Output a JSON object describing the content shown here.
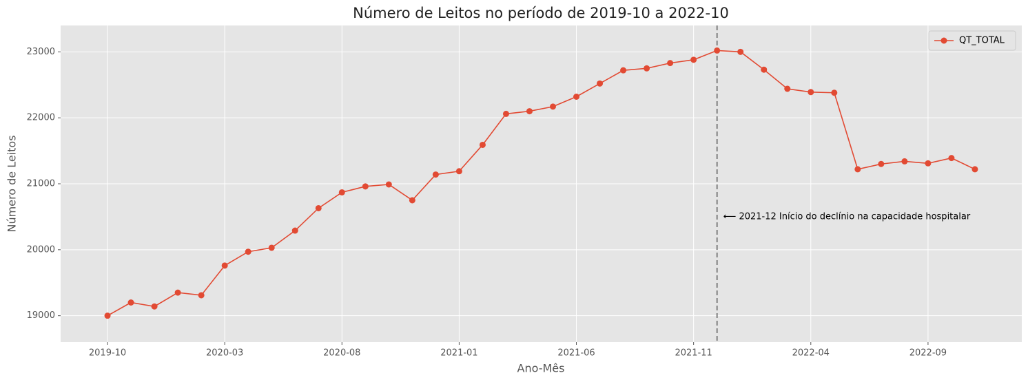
{
  "chart_data": {
    "type": "line",
    "title": "Número de Leitos no período de 2019-10 a 2022-10",
    "xlabel": "Ano-Mês",
    "ylabel": "Número de Leitos",
    "x": [
      "2019-10",
      "2019-11",
      "2019-12",
      "2020-01",
      "2020-02",
      "2020-03",
      "2020-04",
      "2020-05",
      "2020-06",
      "2020-07",
      "2020-08",
      "2020-09",
      "2020-10",
      "2020-11",
      "2020-12",
      "2021-01",
      "2021-02",
      "2021-03",
      "2021-04",
      "2021-05",
      "2021-06",
      "2021-07",
      "2021-08",
      "2021-09",
      "2021-10",
      "2021-11",
      "2021-12",
      "2022-01",
      "2022-02",
      "2022-03",
      "2022-04",
      "2022-05",
      "2022-06",
      "2022-07",
      "2022-08",
      "2022-09",
      "2022-10",
      "2022-11"
    ],
    "series": [
      {
        "name": "QT_TOTAL",
        "color": "#E24A33",
        "values": [
          19000,
          19200,
          19140,
          19350,
          19310,
          19760,
          19970,
          20030,
          20290,
          20630,
          20870,
          20960,
          20990,
          20750,
          21140,
          21190,
          21590,
          22060,
          22100,
          22170,
          22320,
          22520,
          22720,
          22750,
          22830,
          22880,
          23020,
          23000,
          22730,
          22440,
          22390,
          22380,
          21220,
          21300,
          21340,
          21310,
          21390,
          21220
        ]
      }
    ],
    "xlim": [
      "2019-08",
      "2023-01"
    ],
    "xticks": [
      "2019-10",
      "2020-03",
      "2020-08",
      "2021-01",
      "2021-06",
      "2021-11",
      "2022-04",
      "2022-09"
    ],
    "ylim": [
      18600,
      23400
    ],
    "yticks": [
      19000,
      20000,
      21000,
      22000,
      23000
    ],
    "grid": true,
    "legend": "upper right",
    "vline": {
      "x": "2021-12",
      "color": "#808080"
    },
    "annotation": {
      "text": "⟵ 2021-12 Início do declínio na capacidade hospitalar",
      "x": "2021-12",
      "y": 20500
    }
  }
}
